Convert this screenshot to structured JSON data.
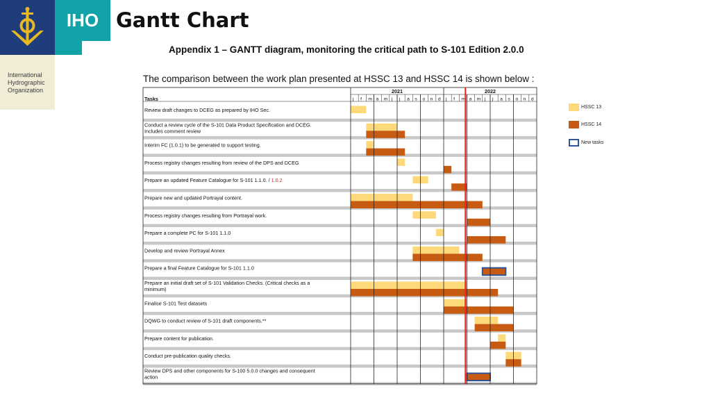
{
  "header": {
    "org_short": "IHO",
    "org_lines": [
      "International",
      "Hydrographic",
      "Organization"
    ],
    "title": "Gantt Chart"
  },
  "chart_data": {
    "type": "gantt",
    "title": "Appendix 1 – GANTT diagram, monitoring the critical path to S-101 Edition 2.0.0",
    "subtitle": "The comparison between the work plan presented at HSSC 13 and HSSC 14 is shown below :",
    "tasks_header": "Tasks",
    "years": [
      "2021",
      "2022"
    ],
    "months": [
      "j",
      "f",
      "m",
      "a",
      "m",
      "j",
      "j",
      "a",
      "s",
      "o",
      "n",
      "d",
      "j",
      "f",
      "m",
      "a",
      "m",
      "j",
      "j",
      "a",
      "s",
      "o",
      "n",
      "d"
    ],
    "current_marker_month_index": 14.8,
    "legend": [
      {
        "label": "HSSC 13",
        "color": "#fdd97a"
      },
      {
        "label": "HSSC 14",
        "color": "#c75b12"
      },
      {
        "label": "New tasks",
        "color": "#2f5597"
      }
    ],
    "tasks": [
      {
        "lines": [
          "Review draft changes to DCEG as prepared by IHO Sec."
        ],
        "hssc13": [
          0,
          2
        ]
      },
      {
        "lines": [
          "Conduct a review cycle of the S-101 Data Product Specification and DCEG.",
          "Includes comment review"
        ],
        "hssc13": [
          2,
          6
        ],
        "hssc14": [
          2,
          7
        ]
      },
      {
        "lines": [
          "Interim FC (1.0.1) to be generated to support testing."
        ],
        "hssc13": [
          2,
          3
        ],
        "hssc14": [
          2,
          7
        ]
      },
      {
        "lines": [
          "Process registry changes resulting from review of the DPS and DCEG"
        ],
        "hssc13": [
          6,
          7
        ],
        "hssc14": [
          12,
          13
        ]
      },
      {
        "lines": [
          "Prepare an updated Feature Catalogue for S-101 1.1.0. / "
        ],
        "red_suffix": "1.0.2",
        "hssc13": [
          8,
          10
        ],
        "hssc14": [
          13,
          15
        ]
      },
      {
        "lines": [
          "Prepare new and updated Portrayal content."
        ],
        "hssc13": [
          0,
          8
        ],
        "hssc14": [
          0,
          17
        ]
      },
      {
        "lines": [
          "Process registry changes resulting from Portrayal work."
        ],
        "hssc13": [
          8,
          11
        ],
        "hssc14": [
          15,
          18
        ]
      },
      {
        "lines": [
          "Prepare a complete PC for S-101 1.1.0"
        ],
        "hssc13": [
          11,
          12
        ],
        "hssc14": [
          15,
          20
        ]
      },
      {
        "lines": [
          "Develop and review Portrayal Annex"
        ],
        "hssc13": [
          8,
          14
        ],
        "hssc14": [
          8,
          17
        ]
      },
      {
        "lines": [
          "Prepare a final Feature Catalogue for S-101 1.1.0"
        ],
        "hssc14": [
          17,
          20
        ],
        "new": true
      },
      {
        "lines": [
          "Prepare an initial draft set of S-101 Validation Checks. (Critical checks as a",
          "minimum)"
        ],
        "hssc13": [
          0,
          15
        ],
        "hssc14": [
          0,
          19
        ]
      },
      {
        "lines": [
          "Finalise S-101 Test datasets"
        ],
        "hssc13": [
          12,
          15
        ],
        "hssc14": [
          12,
          21
        ]
      },
      {
        "lines": [
          "DQWG to conduct review of S-101 draft components.**"
        ],
        "hssc13": [
          16,
          19
        ],
        "hssc14": [
          16,
          21
        ]
      },
      {
        "lines": [
          "Prepare content for publication."
        ],
        "hssc13": [
          19,
          20
        ],
        "hssc14": [
          18,
          20
        ]
      },
      {
        "lines": [
          "Conduct pre-publication quality checks."
        ],
        "hssc13": [
          20,
          22
        ],
        "hssc14": [
          20,
          22
        ]
      },
      {
        "lines": [
          "Review DPS and other components for S-100 5.0.0 changes and consequent",
          "action"
        ],
        "hssc14": [
          15,
          18
        ],
        "new": true
      }
    ]
  }
}
